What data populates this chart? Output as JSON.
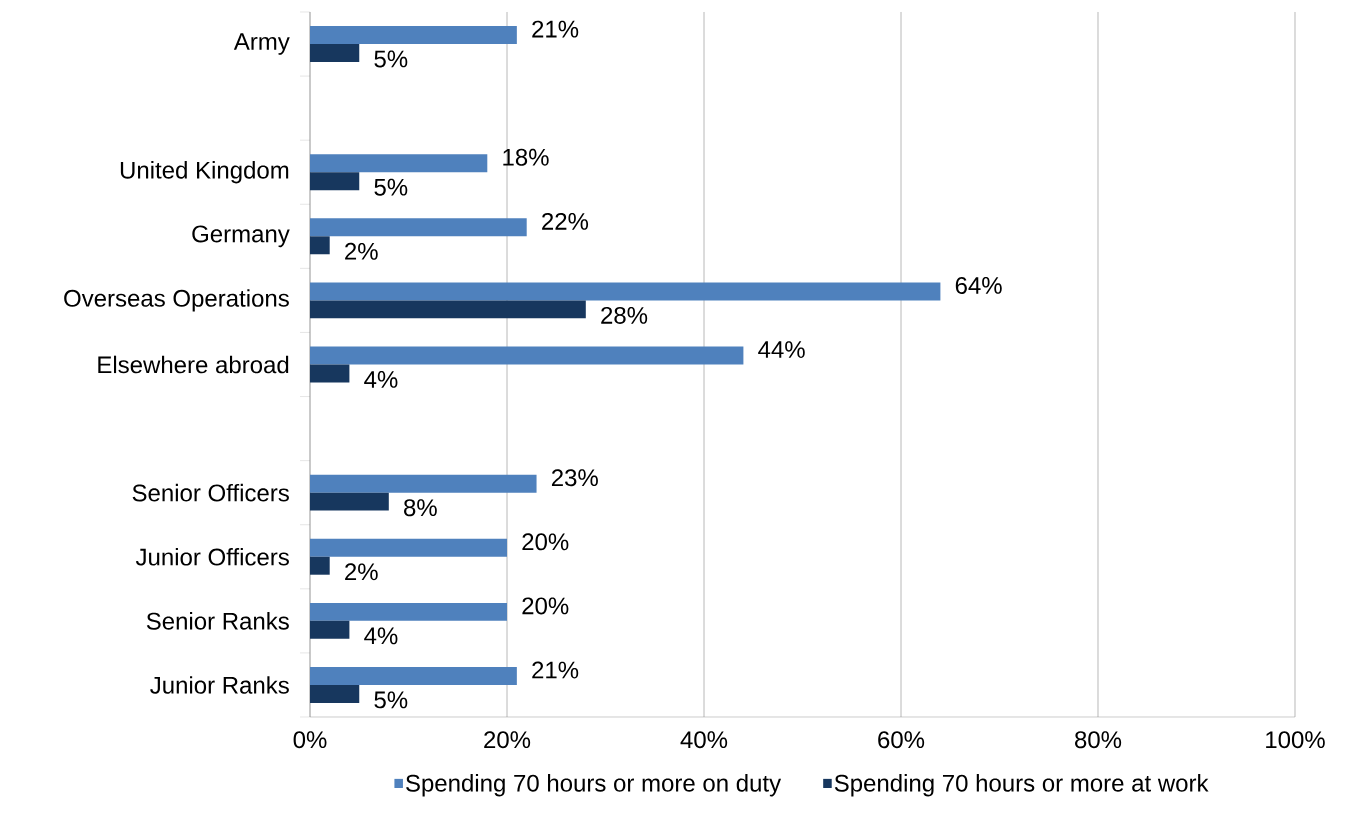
{
  "chart_data": {
    "type": "bar",
    "orientation": "horizontal",
    "categories": [
      "Army",
      null,
      "United Kingdom",
      "Germany",
      "Overseas Operations",
      "Elsewhere abroad",
      null,
      "Senior Officers",
      "Junior Officers",
      "Senior Ranks",
      "Junior Ranks"
    ],
    "series": [
      {
        "name": "Spending 70 hours or more on duty",
        "color": "#4f81bd",
        "values": [
          21,
          null,
          18,
          22,
          64,
          44,
          null,
          23,
          20,
          20,
          21
        ],
        "value_labels": [
          "21%",
          null,
          "18%",
          "22%",
          "64%",
          "44%",
          null,
          "23%",
          "20%",
          "20%",
          "21%"
        ]
      },
      {
        "name": "Spending 70 hours or more at work",
        "color": "#17375e",
        "values": [
          5,
          null,
          5,
          2,
          28,
          4,
          null,
          8,
          2,
          4,
          5
        ],
        "value_labels": [
          "5%",
          null,
          "5%",
          "2%",
          "28%",
          "4%",
          null,
          "8%",
          "2%",
          "4%",
          "5%"
        ]
      }
    ],
    "xlim": [
      0,
      100
    ],
    "xticks": [
      {
        "value": 0,
        "label": "0%"
      },
      {
        "value": 20,
        "label": "20%"
      },
      {
        "value": 40,
        "label": "40%"
      },
      {
        "value": 60,
        "label": "60%"
      },
      {
        "value": 80,
        "label": "80%"
      },
      {
        "value": 100,
        "label": "100%"
      }
    ],
    "grid": "x",
    "legend": "bottom"
  }
}
